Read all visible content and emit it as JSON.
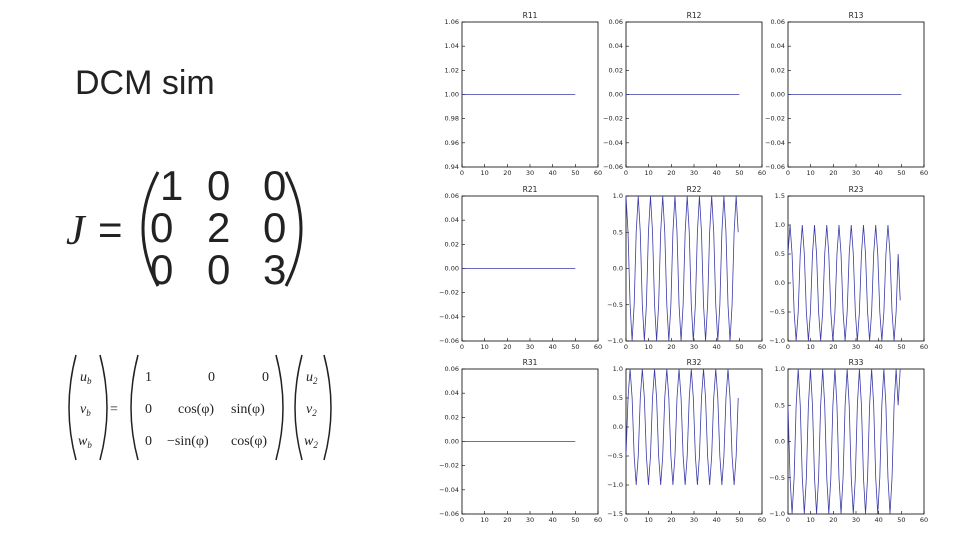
{
  "title": "DCM sim",
  "equation_j": {
    "lhs": "J",
    "equals": "=",
    "rows": [
      [
        "1",
        "0",
        "0"
      ],
      [
        "0",
        "2",
        "0"
      ],
      [
        "0",
        "0",
        "3"
      ]
    ]
  },
  "equation_rotation": {
    "lhs": [
      [
        "u",
        "b"
      ],
      [
        "v",
        "b"
      ],
      [
        "w",
        "b"
      ]
    ],
    "equals": "=",
    "matrix": [
      [
        "1",
        "0",
        "0"
      ],
      [
        "0",
        "cos(φ)",
        "sin(φ)"
      ],
      [
        "0",
        "−sin(φ)",
        "cos(φ)"
      ]
    ],
    "rhs": [
      [
        "u",
        "2"
      ],
      [
        "v",
        "2"
      ],
      [
        "w",
        "2"
      ]
    ]
  },
  "chart_data": [
    {
      "type": "line",
      "title": "R11",
      "x": [
        0,
        50
      ],
      "values": [
        1,
        1
      ],
      "color": "#3a3aa8",
      "xlim": [
        0,
        60
      ],
      "xticks": [
        0,
        10,
        20,
        30,
        40,
        50,
        60
      ],
      "ylim": [
        0.94,
        1.06
      ],
      "yticks": [
        0.94,
        0.96,
        0.98,
        {
          "value": 1,
          "label": "1.00"
        },
        1.02,
        1.04,
        1.06
      ]
    },
    {
      "type": "line",
      "title": "R12",
      "x": [
        0,
        50
      ],
      "values": [
        0,
        0
      ],
      "color": "#3a3aa8",
      "xlim": [
        0,
        60
      ],
      "xticks": [
        0,
        10,
        20,
        30,
        40,
        50,
        60
      ],
      "ylim": [
        -0.06,
        0.06
      ],
      "yticks": [
        {
          "value": -0.06,
          "label": "−0.06"
        },
        {
          "value": -0.04,
          "label": "−0.04"
        },
        {
          "value": -0.02,
          "label": "−0.02"
        },
        {
          "value": 0,
          "label": "0.00"
        },
        0.02,
        0.04,
        0.06
      ]
    },
    {
      "type": "line",
      "title": "R13",
      "x": [
        0,
        50
      ],
      "values": [
        0,
        0
      ],
      "color": "#3a3aa8",
      "xlim": [
        0,
        60
      ],
      "xticks": [
        0,
        10,
        20,
        30,
        40,
        50,
        60
      ],
      "ylim": [
        -0.06,
        0.06
      ],
      "yticks": [
        {
          "value": -0.06,
          "label": "−0.06"
        },
        {
          "value": -0.04,
          "label": "−0.04"
        },
        {
          "value": -0.02,
          "label": "−0.02"
        },
        {
          "value": 0,
          "label": "0.00"
        },
        0.02,
        0.04,
        0.06
      ]
    },
    {
      "type": "line",
      "title": "R21",
      "x": [
        0,
        50
      ],
      "values": [
        0,
        0
      ],
      "color": "#3a3aa8",
      "xlim": [
        0,
        60
      ],
      "xticks": [
        0,
        10,
        20,
        30,
        40,
        50,
        60
      ],
      "ylim": [
        -0.06,
        0.06
      ],
      "yticks": [
        {
          "value": -0.06,
          "label": "−0.06"
        },
        {
          "value": -0.04,
          "label": "−0.04"
        },
        {
          "value": -0.02,
          "label": "−0.02"
        },
        {
          "value": 0,
          "label": "0.00"
        },
        0.02,
        0.04,
        0.06
      ]
    },
    {
      "type": "line",
      "title": "R22",
      "x": [
        0,
        0.9,
        1.8,
        2.7,
        3.6,
        4.5,
        5.4,
        6.3,
        7.2,
        8.1,
        9,
        9.9,
        10.8,
        11.7,
        12.6,
        13.5,
        14.4,
        15.3,
        16.2,
        17.1,
        18,
        18.9,
        19.8,
        20.7,
        21.6,
        22.5,
        23.4,
        24.3,
        25.2,
        26.1,
        27,
        27.9,
        28.8,
        29.7,
        30.6,
        31.5,
        32.4,
        33.3,
        34.2,
        35.1,
        36,
        36.9,
        37.8,
        38.7,
        39.6,
        40.5,
        41.4,
        42.3,
        43.2,
        44.1,
        45,
        45.9,
        46.8,
        47.7,
        48.6,
        49.5
      ],
      "values": [
        1,
        0.5,
        -0.5,
        -1,
        -0.5,
        0.5,
        1,
        0.5,
        -0.5,
        -1,
        -0.5,
        0.5,
        1,
        0.5,
        -0.5,
        -1,
        -0.5,
        0.5,
        1,
        0.5,
        -0.5,
        -1,
        -0.5,
        0.5,
        1,
        0.5,
        -0.5,
        -1,
        -0.5,
        0.5,
        1,
        0.5,
        -0.5,
        -1,
        -0.5,
        0.5,
        1,
        0.5,
        -0.5,
        -1,
        -0.5,
        0.5,
        1,
        0.5,
        -0.5,
        -1,
        -0.5,
        0.5,
        1,
        0.5,
        -0.5,
        -1,
        -0.5,
        0.5,
        1,
        0.5
      ],
      "color": "#3a3aa8",
      "xlim": [
        0,
        60
      ],
      "xticks": [
        0,
        10,
        20,
        30,
        40,
        50,
        60
      ],
      "ylim": [
        -1,
        1
      ],
      "yticks": [
        {
          "value": -1,
          "label": "−1.0"
        },
        {
          "value": -0.5,
          "label": "−0.5"
        },
        {
          "value": 0,
          "label": "0.0"
        },
        0.5,
        {
          "value": 1,
          "label": "1.0"
        }
      ]
    },
    {
      "type": "line",
      "title": "R23",
      "x": [
        0,
        0.9,
        1.8,
        2.7,
        3.6,
        4.5,
        5.4,
        6.3,
        7.2,
        8.1,
        9,
        9.9,
        10.8,
        11.7,
        12.6,
        13.5,
        14.4,
        15.3,
        16.2,
        17.1,
        18,
        18.9,
        19.8,
        20.7,
        21.6,
        22.5,
        23.4,
        24.3,
        25.2,
        26.1,
        27,
        27.9,
        28.8,
        29.7,
        30.6,
        31.5,
        32.4,
        33.3,
        34.2,
        35.1,
        36,
        36.9,
        37.8,
        38.7,
        39.6,
        40.5,
        41.4,
        42.3,
        43.2,
        44.1,
        45,
        45.9,
        46.8,
        47.7,
        48.6,
        49.5
      ],
      "values": [
        0.5,
        1,
        0.5,
        -0.5,
        -1,
        -0.5,
        0.5,
        1,
        0.5,
        -0.5,
        -1,
        -0.5,
        0.5,
        1,
        0.5,
        -0.5,
        -1,
        -0.5,
        0.5,
        1,
        0.5,
        -0.5,
        -1,
        -0.5,
        0.5,
        1,
        0.5,
        -0.5,
        -1,
        -0.5,
        0.5,
        1,
        0.5,
        -0.5,
        -1,
        -0.5,
        0.5,
        1,
        0.5,
        -0.5,
        -1,
        -0.5,
        0.5,
        1,
        0.5,
        -0.5,
        -1,
        -0.5,
        0.5,
        1,
        0.5,
        -0.5,
        -1,
        -0.5,
        0.5,
        -0.3
      ],
      "color": "#3a3aa8",
      "xlim": [
        0,
        60
      ],
      "xticks": [
        0,
        10,
        20,
        30,
        40,
        50,
        60
      ],
      "ylim": [
        -1,
        1.5
      ],
      "yticks": [
        {
          "value": -1,
          "label": "−1.0"
        },
        {
          "value": -0.5,
          "label": "−0.5"
        },
        {
          "value": 0,
          "label": "0.0"
        },
        0.5,
        {
          "value": 1,
          "label": "1.0"
        },
        1.5
      ]
    },
    {
      "type": "line",
      "title": "R31",
      "x": [
        0,
        50
      ],
      "values": [
        0,
        0
      ],
      "color": "#3a3aa8",
      "xlim": [
        0,
        60
      ],
      "xticks": [
        0,
        10,
        20,
        30,
        40,
        50,
        60
      ],
      "ylim": [
        -0.06,
        0.06
      ],
      "yticks": [
        {
          "value": -0.06,
          "label": "−0.06"
        },
        {
          "value": -0.04,
          "label": "−0.04"
        },
        {
          "value": -0.02,
          "label": "−0.02"
        },
        {
          "value": 0,
          "label": "0.00"
        },
        0.02,
        0.04,
        0.06
      ]
    },
    {
      "type": "line",
      "title": "R32",
      "x": [
        0,
        0.9,
        1.8,
        2.7,
        3.6,
        4.5,
        5.4,
        6.3,
        7.2,
        8.1,
        9,
        9.9,
        10.8,
        11.7,
        12.6,
        13.5,
        14.4,
        15.3,
        16.2,
        17.1,
        18,
        18.9,
        19.8,
        20.7,
        21.6,
        22.5,
        23.4,
        24.3,
        25.2,
        26.1,
        27,
        27.9,
        28.8,
        29.7,
        30.6,
        31.5,
        32.4,
        33.3,
        34.2,
        35.1,
        36,
        36.9,
        37.8,
        38.7,
        39.6,
        40.5,
        41.4,
        42.3,
        43.2,
        44.1,
        45,
        45.9,
        46.8,
        47.7,
        48.6,
        49.5
      ],
      "values": [
        -0.5,
        0.5,
        1,
        0.5,
        -0.5,
        -1,
        -0.5,
        0.5,
        1,
        0.5,
        -0.5,
        -1,
        -0.5,
        0.5,
        1,
        0.5,
        -0.5,
        -1,
        -0.5,
        0.5,
        1,
        0.5,
        -0.5,
        -1,
        -0.5,
        0.5,
        1,
        0.5,
        -0.5,
        -1,
        -0.5,
        0.5,
        1,
        0.5,
        -0.5,
        -1,
        -0.5,
        0.5,
        1,
        0.5,
        -0.5,
        -1,
        -0.5,
        0.5,
        1,
        0.5,
        -0.5,
        -1,
        -0.5,
        0.5,
        1,
        0.5,
        -0.5,
        -1,
        -0.5,
        0.5
      ],
      "color": "#3a3aa8",
      "xlim": [
        0,
        60
      ],
      "xticks": [
        0,
        10,
        20,
        30,
        40,
        50,
        60
      ],
      "ylim": [
        -1.5,
        1
      ],
      "yticks": [
        {
          "value": -1.5,
          "label": "−1.5"
        },
        {
          "value": -1,
          "label": "−1.0"
        },
        {
          "value": -0.5,
          "label": "−0.5"
        },
        {
          "value": 0,
          "label": "0.0"
        },
        0.5,
        {
          "value": 1,
          "label": "1.0"
        }
      ]
    },
    {
      "type": "line",
      "title": "R33",
      "x": [
        0,
        0.9,
        1.8,
        2.7,
        3.6,
        4.5,
        5.4,
        6.3,
        7.2,
        8.1,
        9,
        9.9,
        10.8,
        11.7,
        12.6,
        13.5,
        14.4,
        15.3,
        16.2,
        17.1,
        18,
        18.9,
        19.8,
        20.7,
        21.6,
        22.5,
        23.4,
        24.3,
        25.2,
        26.1,
        27,
        27.9,
        28.8,
        29.7,
        30.6,
        31.5,
        32.4,
        33.3,
        34.2,
        35.1,
        36,
        36.9,
        37.8,
        38.7,
        39.6,
        40.5,
        41.4,
        42.3,
        43.2,
        44.1,
        45,
        45.9,
        46.8,
        47.7,
        48.6,
        49.5
      ],
      "values": [
        0.5,
        -0.5,
        -1,
        -0.5,
        0.5,
        1,
        0.5,
        -0.5,
        -1,
        -0.5,
        0.5,
        1,
        0.5,
        -0.5,
        -1,
        -0.5,
        0.5,
        1,
        0.5,
        -0.5,
        -1,
        -0.5,
        0.5,
        1,
        0.5,
        -0.5,
        -1,
        -0.5,
        0.5,
        1,
        0.5,
        -0.5,
        -1,
        -0.5,
        0.5,
        1,
        0.5,
        -0.5,
        -1,
        -0.5,
        0.5,
        1,
        0.5,
        -0.5,
        -1,
        -0.5,
        0.5,
        1,
        0.5,
        -0.5,
        -1,
        -0.5,
        0.5,
        1,
        0.5,
        1
      ],
      "color": "#3a3aa8",
      "xlim": [
        0,
        60
      ],
      "xticks": [
        0,
        10,
        20,
        30,
        40,
        50,
        60
      ],
      "ylim": [
        -1,
        1
      ],
      "yticks": [
        {
          "value": -1,
          "label": "−1.0"
        },
        {
          "value": -0.5,
          "label": "−0.5"
        },
        {
          "value": 0,
          "label": "0.0"
        },
        0.5,
        {
          "value": 1,
          "label": "1.0"
        }
      ]
    }
  ]
}
